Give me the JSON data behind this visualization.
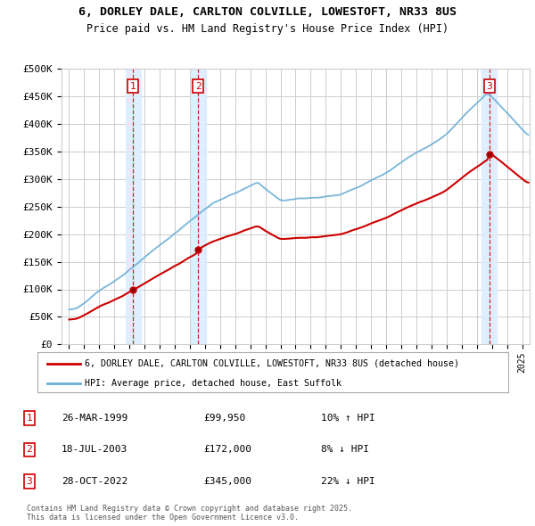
{
  "title_line1": "6, DORLEY DALE, CARLTON COLVILLE, LOWESTOFT, NR33 8US",
  "title_line2": "Price paid vs. HM Land Registry's House Price Index (HPI)",
  "ylim": [
    0,
    500000
  ],
  "yticks": [
    0,
    50000,
    100000,
    150000,
    200000,
    250000,
    300000,
    350000,
    400000,
    450000,
    500000
  ],
  "ytick_labels": [
    "£0",
    "£50K",
    "£100K",
    "£150K",
    "£200K",
    "£250K",
    "£300K",
    "£350K",
    "£400K",
    "£450K",
    "£500K"
  ],
  "sale_times": [
    1999.23,
    2003.54,
    2022.83
  ],
  "sale_prices": [
    99950,
    172000,
    345000
  ],
  "sale_labels": [
    "1",
    "2",
    "3"
  ],
  "legend_red": "6, DORLEY DALE, CARLTON COLVILLE, LOWESTOFT, NR33 8US (detached house)",
  "legend_blue": "HPI: Average price, detached house, East Suffolk",
  "table_entries": [
    {
      "num": "1",
      "date": "26-MAR-1999",
      "price": "£99,950",
      "pct": "10% ↑ HPI"
    },
    {
      "num": "2",
      "date": "18-JUL-2003",
      "price": "£172,000",
      "pct": "8% ↓ HPI"
    },
    {
      "num": "3",
      "date": "28-OCT-2022",
      "price": "£345,000",
      "pct": "22% ↓ HPI"
    }
  ],
  "footer": "Contains HM Land Registry data © Crown copyright and database right 2025.\nThis data is licensed under the Open Government Licence v3.0.",
  "red_color": "#cc0000",
  "blue_color": "#6BAED6",
  "bg_color": "#ffffff",
  "grid_color": "#cccccc",
  "highlight_color": "#ddeeff"
}
